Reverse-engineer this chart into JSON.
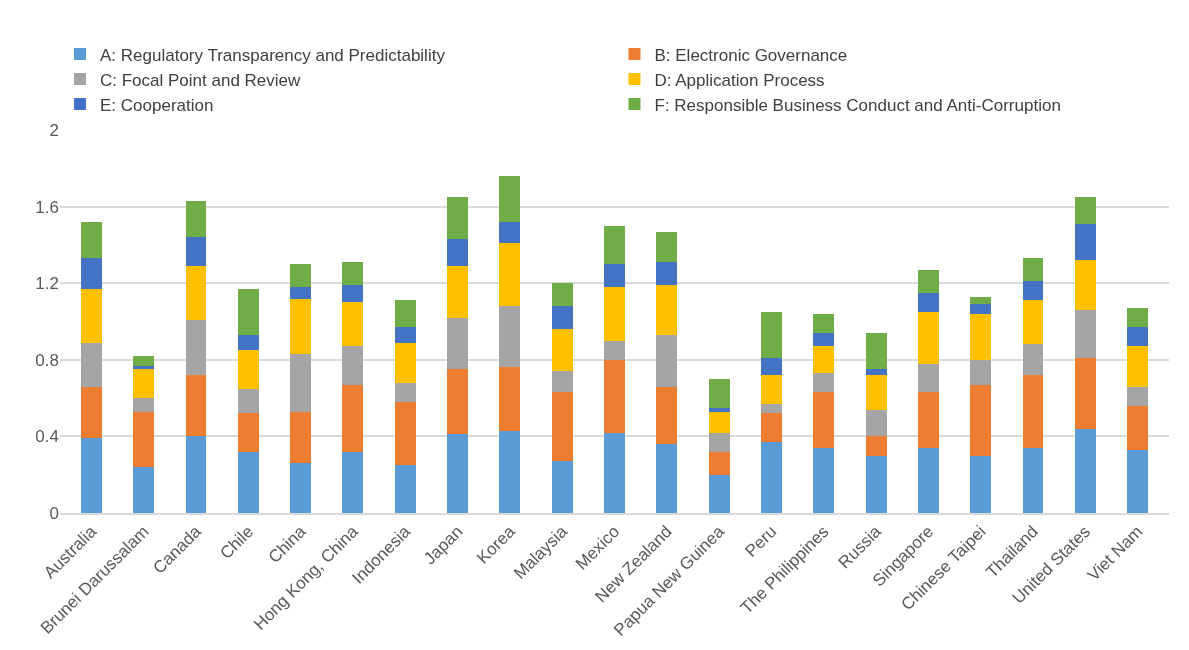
{
  "chart_data": {
    "type": "bar",
    "stacked": true,
    "legend": "top",
    "grid": "y",
    "ylim": [
      0,
      2
    ],
    "yticks": [
      0,
      0.4,
      0.8,
      1.2,
      1.6,
      2
    ],
    "categories": [
      "Australia",
      "Brunei Darussalam",
      "Canada",
      "Chile",
      "China",
      "Hong Kong, China",
      "Indonesia",
      "Japan",
      "Korea",
      "Malaysia",
      "Mexico",
      "New Zealand",
      "Papua New Guinea",
      "Peru",
      "The Philippines",
      "Russia",
      "Singapore",
      "Chinese Taipei",
      "Thailand",
      "United States",
      "Viet Nam"
    ],
    "series": [
      {
        "name": "A: Regulatory Transparency and Predictability",
        "color": "#5b9bd5",
        "values": [
          0.39,
          0.24,
          0.4,
          0.32,
          0.26,
          0.32,
          0.25,
          0.41,
          0.43,
          0.27,
          0.42,
          0.36,
          0.2,
          0.37,
          0.34,
          0.3,
          0.34,
          0.3,
          0.34,
          0.44,
          0.33
        ]
      },
      {
        "name": "B: Electronic Governance",
        "color": "#ed7d31",
        "values": [
          0.27,
          0.29,
          0.32,
          0.2,
          0.27,
          0.35,
          0.33,
          0.34,
          0.33,
          0.36,
          0.38,
          0.3,
          0.12,
          0.15,
          0.29,
          0.1,
          0.29,
          0.37,
          0.38,
          0.37,
          0.23
        ]
      },
      {
        "name": "C: Focal Point and Review",
        "color": "#a5a5a5",
        "values": [
          0.23,
          0.07,
          0.29,
          0.13,
          0.3,
          0.2,
          0.1,
          0.27,
          0.32,
          0.11,
          0.1,
          0.27,
          0.1,
          0.05,
          0.1,
          0.14,
          0.15,
          0.13,
          0.16,
          0.25,
          0.1
        ]
      },
      {
        "name": "D: Application Process",
        "color": "#ffc000",
        "values": [
          0.28,
          0.15,
          0.28,
          0.2,
          0.29,
          0.23,
          0.21,
          0.27,
          0.33,
          0.22,
          0.28,
          0.26,
          0.11,
          0.15,
          0.14,
          0.18,
          0.27,
          0.24,
          0.23,
          0.26,
          0.21
        ]
      },
      {
        "name": "E: Cooperation",
        "color": "#4472c4",
        "values": [
          0.16,
          0.02,
          0.15,
          0.08,
          0.06,
          0.09,
          0.08,
          0.14,
          0.11,
          0.12,
          0.12,
          0.12,
          0.02,
          0.09,
          0.07,
          0.03,
          0.1,
          0.05,
          0.1,
          0.19,
          0.1
        ]
      },
      {
        "name": "F: Responsible Business Conduct and Anti-Corruption",
        "color": "#70ad47",
        "values": [
          0.19,
          0.05,
          0.19,
          0.24,
          0.12,
          0.12,
          0.14,
          0.22,
          0.24,
          0.12,
          0.2,
          0.16,
          0.15,
          0.24,
          0.1,
          0.19,
          0.12,
          0.04,
          0.12,
          0.14,
          0.1
        ]
      }
    ]
  }
}
